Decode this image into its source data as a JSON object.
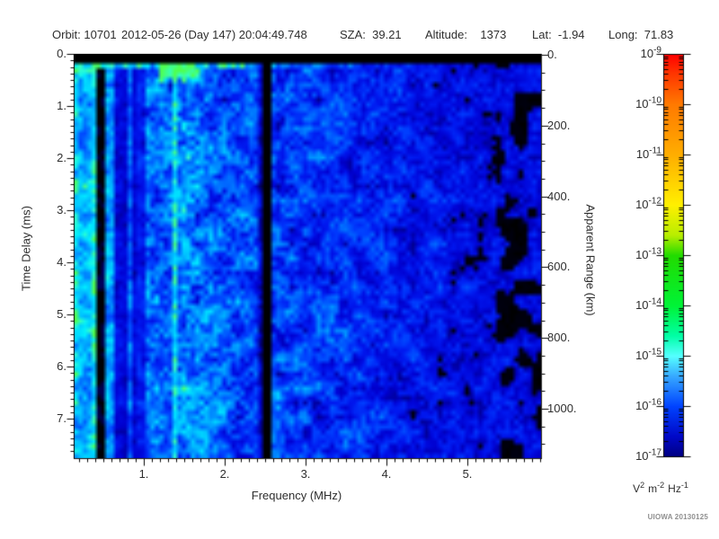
{
  "header": {
    "items": [
      "Orbit: 10701",
      "2012-05-26 (Day 147) 20:04:49.748",
      "SZA:  39.21",
      "Altitude:    1373",
      "Lat:  -1.94",
      "Long:  71.83"
    ]
  },
  "axes": {
    "x": {
      "label": "Frequency (MHz)",
      "tick_labels": [
        "1.",
        "2.",
        "3.",
        "4.",
        "5."
      ],
      "tick_values": [
        1,
        2,
        3,
        4,
        5
      ],
      "range": [
        0.133,
        5.911
      ],
      "minor_step": 0.1
    },
    "y": {
      "label": "Time Delay (ms)",
      "tick_labels": [
        "0.",
        "1.",
        "2.",
        "3.",
        "4.",
        "5.",
        "6.",
        "7."
      ],
      "tick_values": [
        0,
        1,
        2,
        3,
        4,
        5,
        6,
        7
      ],
      "range": [
        0,
        7.76
      ],
      "minor_step": 0.125
    },
    "y2": {
      "label": "Apparent Range (km)",
      "tick_labels": [
        "0.",
        "200.",
        "400.",
        "600.",
        "800.",
        "1000."
      ],
      "tick_values": [
        0,
        200,
        400,
        600,
        800,
        1000
      ],
      "range": [
        0,
        1140
      ],
      "minor_step": 50
    }
  },
  "colorbar": {
    "labels": [
      {
        "base": "10",
        "exp": "-9"
      },
      {
        "base": "10",
        "exp": "-10"
      },
      {
        "base": "10",
        "exp": "-11"
      },
      {
        "base": "10",
        "exp": "-12"
      },
      {
        "base": "10",
        "exp": "-13"
      },
      {
        "base": "10",
        "exp": "-14"
      },
      {
        "base": "10",
        "exp": "-15"
      },
      {
        "base": "10",
        "exp": "-16"
      },
      {
        "base": "10",
        "exp": "-17"
      }
    ],
    "unit": {
      "v": "V",
      "v_exp": "2",
      "m": "m",
      "m_exp": "-2",
      "hz": "Hz",
      "hz_exp": "-1"
    },
    "gradient": [
      [
        0,
        "#FF0000"
      ],
      [
        0.05,
        "#FF3800"
      ],
      [
        0.125,
        "#FF7A00"
      ],
      [
        0.25,
        "#FFAE00"
      ],
      [
        0.375,
        "#FFF000"
      ],
      [
        0.45,
        "#B8EE00"
      ],
      [
        0.5,
        "#22DC00"
      ],
      [
        0.625,
        "#00F437"
      ],
      [
        0.7,
        "#00FFA6"
      ],
      [
        0.75,
        "#55FFFF"
      ],
      [
        0.8,
        "#37A9FF"
      ],
      [
        0.875,
        "#0043FF"
      ],
      [
        0.95,
        "#0008C8"
      ],
      [
        1,
        "#000082"
      ]
    ]
  },
  "watermark": "UIOWA 20130125",
  "chart_data": {
    "type": "heatmap",
    "title": "",
    "xlabel": "Frequency (MHz)",
    "ylabel": "Time Delay (ms)",
    "y2label": "Apparent Range (km)",
    "x_ticks": [
      1,
      2,
      3,
      4,
      5
    ],
    "y_ticks": [
      0,
      1,
      2,
      3,
      4,
      5,
      6,
      7
    ],
    "y2_ticks": [
      0,
      200,
      400,
      600,
      800,
      1000
    ],
    "xlim": [
      0.133,
      5.911
    ],
    "ylim": [
      0,
      7.76
    ],
    "y2lim": [
      0,
      1140
    ],
    "colorbar_unit": "V^2 m^-2 Hz^-1",
    "colorbar_range_exponents": [
      -9,
      -17
    ],
    "observation": {
      "orbit": "10701",
      "date": "2012-05-26",
      "day": "147",
      "time": "20:04:49.748",
      "sza": "39.21",
      "altitude": "1373",
      "lat": "-1.94",
      "long": "71.83"
    },
    "features": [
      "solid black band across top for time delay 0 to ~0.15 ms",
      "bright cyan/green surface-noise row just below the black band",
      "strong vertical cyan interference stripes below ~1 MHz",
      "bright green echo patch near 1.2-1.7 MHz at 0.25-0.6 ms delay",
      "bright narrowband cyan line at ~1.4 MHz full height",
      "dark absorption line at ~2.5 MHz full height",
      "overall intensity (blue) decreases with frequency; black noise-floor patches dominate above ~4.5 MHz"
    ]
  },
  "spectrogram": {
    "seed": 1337,
    "nx": 104,
    "ny": 84,
    "freq_min": 0.133,
    "freq_max": 5.911,
    "delay_max_ms": 7.76,
    "base_profile": [
      [
        0.13,
        0.6
      ],
      [
        0.9,
        0.56
      ],
      [
        1.05,
        0.48
      ],
      [
        1.3,
        0.46
      ],
      [
        1.5,
        0.54
      ],
      [
        1.75,
        0.52
      ],
      [
        2.0,
        0.46
      ],
      [
        2.35,
        0.43
      ],
      [
        2.7,
        0.41
      ],
      [
        3.0,
        0.39
      ],
      [
        3.5,
        0.36
      ],
      [
        4.0,
        0.33
      ],
      [
        4.5,
        0.3
      ],
      [
        5.0,
        0.27
      ],
      [
        5.9,
        0.24
      ]
    ],
    "features": {
      "top_black_band_ms": 0.15,
      "bright_surface_row_ms": [
        0.15,
        0.31
      ],
      "stripe_region_max_f": 1.02,
      "stripe_overrides": [
        [
          0.16,
          0.62
        ],
        [
          0.3,
          0.55
        ],
        [
          0.45,
          0.07
        ],
        [
          0.57,
          0.52
        ],
        [
          0.7,
          0.24
        ],
        [
          0.83,
          0.42
        ],
        [
          0.95,
          0.3
        ]
      ],
      "bright_line_f": 1.39,
      "dark_line_f": 2.51,
      "green_patch": {
        "f": [
          1.17,
          1.7
        ],
        "delay_ms": [
          0.22,
          0.6
        ]
      },
      "black_cut": [
        [
          0.13,
          0.1
        ],
        [
          3.0,
          0.1
        ],
        [
          4.5,
          0.17
        ],
        [
          5.91,
          0.19
        ]
      ],
      "right_black_f": 5.35
    },
    "palette": [
      [
        0,
        "#000000"
      ],
      [
        0.07,
        "#000020"
      ],
      [
        0.15,
        "#000080"
      ],
      [
        0.25,
        "#0000D0"
      ],
      [
        0.35,
        "#0018F0"
      ],
      [
        0.45,
        "#0040FF"
      ],
      [
        0.55,
        "#0070FF"
      ],
      [
        0.65,
        "#00A0FF"
      ],
      [
        0.75,
        "#00CFFF"
      ],
      [
        0.85,
        "#00F0FF"
      ],
      [
        0.9,
        "#30FFD0"
      ],
      [
        0.95,
        "#40FF90"
      ],
      [
        1,
        "#50FF50"
      ]
    ]
  }
}
